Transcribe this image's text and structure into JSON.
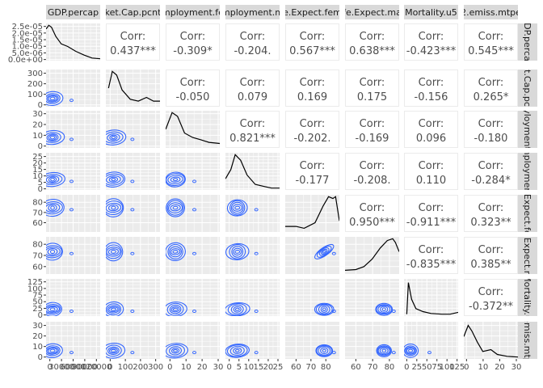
{
  "chart_data": {
    "type": "scatterplot-matrix",
    "variables": [
      "GDP.percap",
      "Market.Cap.pcnt",
      "Unemployment.fe",
      "Unemployment.ma",
      "Life.Expect.fema",
      "Life.Expect.mal",
      "Mortality.u5",
      "CO2.emiss.mtper"
    ],
    "column_labels": [
      "GDP.percap",
      "ket.Cap.pcnt",
      "mployment.fe",
      "mployment.m",
      "e.Expect.fem",
      "fe.Expect.ma",
      "Mortality.u5",
      "2.emiss.mtpe"
    ],
    "row_labels": [
      "DP.perca",
      "t.Cap.pc",
      "yloyment",
      "nploymen",
      ".Expect.fe",
      ".Expect.n",
      "Mortality.u",
      "emiss.mtp"
    ],
    "corr_word": "Corr:",
    "correlations": [
      {
        "row": 0,
        "col": 1,
        "label": "0.437***"
      },
      {
        "row": 0,
        "col": 2,
        "label": "-0.309*"
      },
      {
        "row": 0,
        "col": 3,
        "label": "-0.204."
      },
      {
        "row": 0,
        "col": 4,
        "label": "0.567***"
      },
      {
        "row": 0,
        "col": 5,
        "label": "0.638***"
      },
      {
        "row": 0,
        "col": 6,
        "label": "-0.423***"
      },
      {
        "row": 0,
        "col": 7,
        "label": "0.545***"
      },
      {
        "row": 1,
        "col": 2,
        "label": "-0.050"
      },
      {
        "row": 1,
        "col": 3,
        "label": "0.079"
      },
      {
        "row": 1,
        "col": 4,
        "label": "0.169"
      },
      {
        "row": 1,
        "col": 5,
        "label": "0.175"
      },
      {
        "row": 1,
        "col": 6,
        "label": "-0.156"
      },
      {
        "row": 1,
        "col": 7,
        "label": "0.265*"
      },
      {
        "row": 2,
        "col": 3,
        "label": "0.821***"
      },
      {
        "row": 2,
        "col": 4,
        "label": "-0.202."
      },
      {
        "row": 2,
        "col": 5,
        "label": "-0.169"
      },
      {
        "row": 2,
        "col": 6,
        "label": "0.096"
      },
      {
        "row": 2,
        "col": 7,
        "label": "-0.180"
      },
      {
        "row": 3,
        "col": 4,
        "label": "-0.177"
      },
      {
        "row": 3,
        "col": 5,
        "label": "-0.208."
      },
      {
        "row": 3,
        "col": 6,
        "label": "0.110"
      },
      {
        "row": 3,
        "col": 7,
        "label": "-0.284*"
      },
      {
        "row": 4,
        "col": 5,
        "label": "0.950***"
      },
      {
        "row": 4,
        "col": 6,
        "label": "-0.911***"
      },
      {
        "row": 4,
        "col": 7,
        "label": "0.323**"
      },
      {
        "row": 5,
        "col": 6,
        "label": "-0.835***"
      },
      {
        "row": 5,
        "col": 7,
        "label": "0.385**"
      },
      {
        "row": 6,
        "col": 7,
        "label": "-0.372**"
      }
    ],
    "row_axes": [
      {
        "row": 0,
        "ticks": [
          "2.5e-05",
          "2.0e-05",
          "1.5e-05",
          "1.0e-05",
          "5.0e-06",
          "0.0e+00"
        ]
      },
      {
        "row": 1,
        "ticks": [
          "300",
          "200",
          "100",
          "0"
        ]
      },
      {
        "row": 2,
        "ticks": [
          "30",
          "20",
          "10",
          "0"
        ]
      },
      {
        "row": 3,
        "ticks": [
          "25",
          "20",
          "15",
          "10",
          "5",
          "0"
        ]
      },
      {
        "row": 4,
        "ticks": [
          "80",
          "70",
          "60"
        ]
      },
      {
        "row": 5,
        "ticks": [
          "80",
          "70",
          "60"
        ]
      },
      {
        "row": 6,
        "ticks": [
          "125",
          "100",
          "75",
          "50",
          "25",
          "0"
        ]
      },
      {
        "row": 7,
        "ticks": [
          "30",
          "20",
          "10",
          "0"
        ]
      }
    ],
    "col_axes": [
      {
        "col": 0,
        "ticks": [
          "0",
          "30000",
          "60000",
          "90000",
          "120000"
        ]
      },
      {
        "col": 1,
        "ticks": [
          "0",
          "100",
          "200",
          "300"
        ]
      },
      {
        "col": 2,
        "ticks": [
          "0",
          "10",
          "20",
          "30"
        ]
      },
      {
        "col": 3,
        "ticks": [
          "0",
          "5",
          "10",
          "15",
          "20",
          "25"
        ]
      },
      {
        "col": 4,
        "ticks": [
          "60",
          "70",
          "80"
        ]
      },
      {
        "col": 5,
        "ticks": [
          "60",
          "70",
          "80"
        ]
      },
      {
        "col": 6,
        "ticks": [
          "0",
          "25",
          "50",
          "75",
          "100",
          "125"
        ]
      },
      {
        "col": 7,
        "ticks": [
          "0",
          "10",
          "20",
          "30"
        ]
      }
    ],
    "diagonal_density": "line",
    "lower_panels": "2d density contours",
    "colors": {
      "panel": "#ebebeb",
      "strip": "#d9d9d9",
      "contour": "#3366ff",
      "density": "#000000",
      "corr_text": "#4d4d4d"
    }
  }
}
